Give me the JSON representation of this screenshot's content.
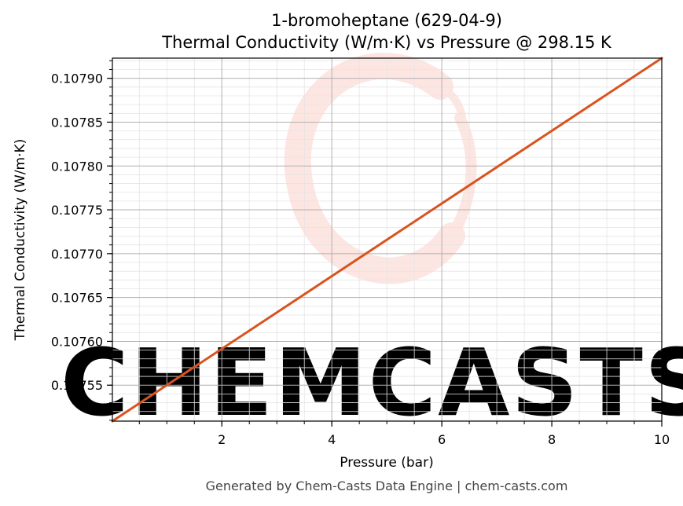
{
  "colors": {
    "series_line": "#d9531e",
    "watermark": "#fde6e2",
    "major_grid": "#b0b0b0",
    "minor_grid": "#e4e4e4",
    "axis": "#000000",
    "footer_text": "#444444"
  },
  "watermark": {
    "text": "CHEMCASTS",
    "icon": "flask-swirl-logo"
  },
  "footer": {
    "text": "Generated by Chem-Casts Data Engine | chem-casts.com"
  },
  "chart_data": {
    "type": "line",
    "title": "1-bromoheptane (629-04-9)",
    "subtitle": "Thermal Conductivity (W/m·K) vs Pressure @ 298.15 K",
    "xlabel": "Pressure (bar)",
    "ylabel": "Thermal Conductivity (W/m·K)",
    "xlim": [
      0.01,
      10
    ],
    "ylim": [
      0.107509,
      0.107923
    ],
    "x_ticks": [
      2,
      4,
      6,
      8,
      10
    ],
    "x_tick_labels": [
      "2",
      "4",
      "6",
      "8",
      "10"
    ],
    "y_ticks": [
      0.10755,
      0.1076,
      0.10765,
      0.1077,
      0.10775,
      0.1078,
      0.10785,
      0.1079
    ],
    "y_tick_labels": [
      "0.10755",
      "0.10760",
      "0.10765",
      "0.10770",
      "0.10775",
      "0.10780",
      "0.10785",
      "0.10790"
    ],
    "x_minor_step": 0.5,
    "y_minor_step": 1e-05,
    "grid": true,
    "legend": "none",
    "series": [
      {
        "x": [
          0.01,
          10
        ],
        "y": [
          0.107509,
          0.107923
        ]
      }
    ]
  }
}
